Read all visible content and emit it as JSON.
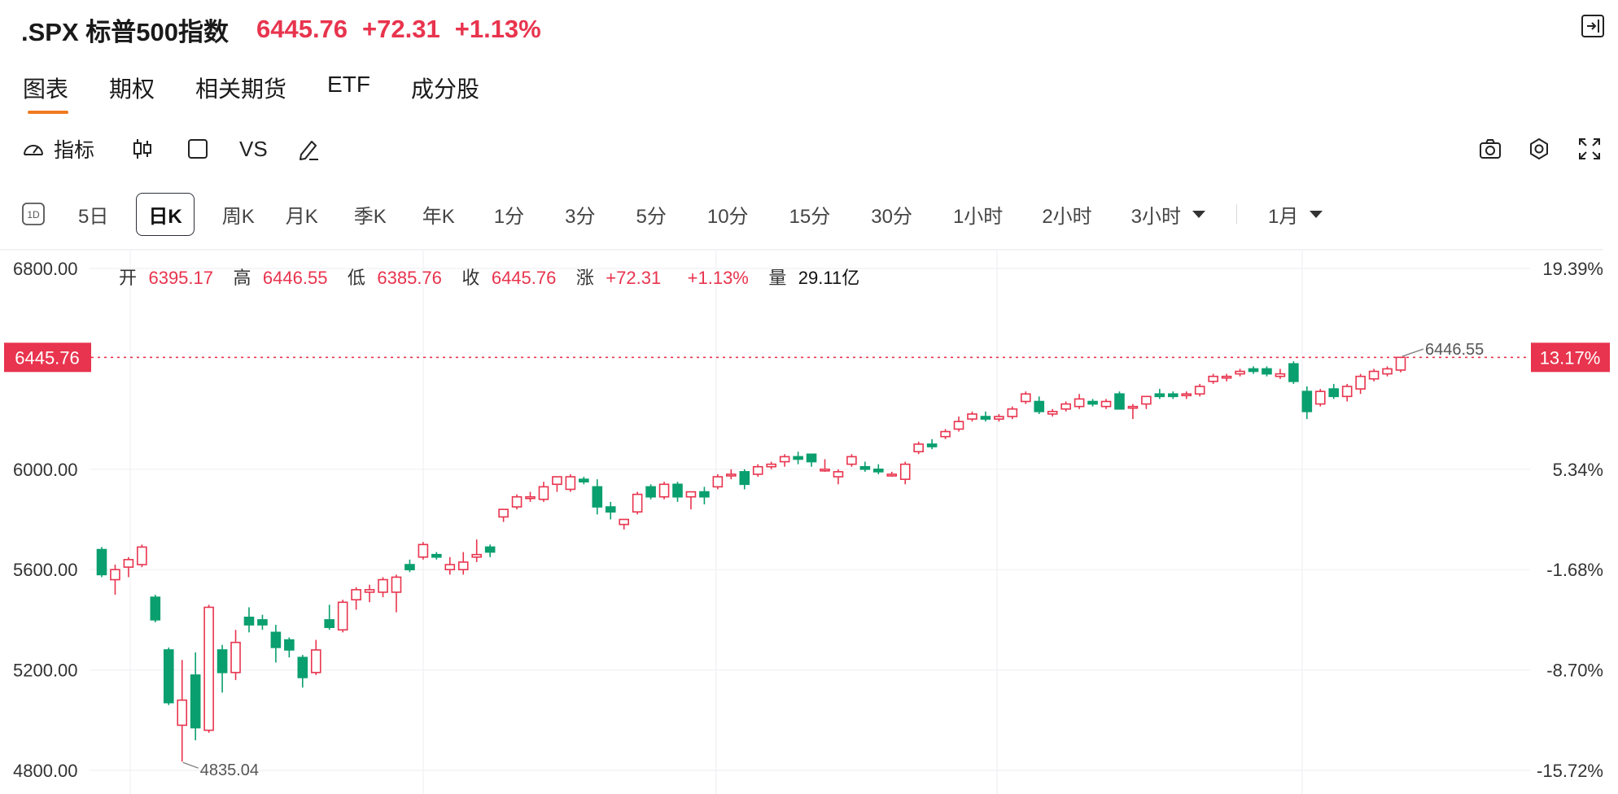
{
  "header": {
    "symbol": ".SPX 标普500指数",
    "price": "6445.76",
    "change": "+72.31",
    "change_pct": "+1.13%"
  },
  "icons": {
    "collapse": "collapse-panel-icon",
    "indicator": "gauge-icon",
    "candle": "candlestick-icon",
    "square": "square-icon",
    "draw": "pen-icon",
    "camera": "camera-icon",
    "settings": "gear-icon",
    "fullscreen": "fullscreen-icon",
    "day": "1d-badge-icon"
  },
  "tabs": [
    "图表",
    "期权",
    "相关期货",
    "ETF",
    "成分股"
  ],
  "toolbar": {
    "indicator_label": "指标",
    "vs_label": "VS"
  },
  "periods": {
    "items": [
      "5日",
      "日K",
      "周K",
      "月K",
      "季K",
      "年K",
      "1分",
      "3分",
      "5分",
      "10分",
      "15分",
      "30分",
      "1小时",
      "2小时"
    ],
    "active_index": 1,
    "more": "3小时",
    "range": "1月"
  },
  "colors": {
    "up": "#e8344e",
    "down": "#0a9f6e",
    "accent": "#f07a22"
  },
  "chart_data": {
    "type": "candlestick",
    "ylim": [
      4740,
      6840
    ],
    "y_ticks": [
      "6800.00",
      "6000.00",
      "5600.00",
      "5200.00",
      "4800.00"
    ],
    "y_tick_values": [
      6800,
      6000,
      5600,
      5200,
      4800
    ],
    "pct_ticks": [
      "19.39%",
      "13.17%",
      "5.34%",
      "-1.68%",
      "-8.70%",
      "-15.72%"
    ],
    "pct_tick_values": [
      6800,
      6445.76,
      6000,
      5600,
      5200,
      4800
    ],
    "current_price": "6445.76",
    "current_pct": "13.17%",
    "high_label": "6446.55",
    "low_label": "4835.04",
    "ohlc": {
      "open_label": "开",
      "open": "6395.17",
      "high_label": "高",
      "high": "6446.55",
      "low_label": "低",
      "low": "6385.76",
      "close_label": "收",
      "close": "6445.76",
      "change_label": "涨",
      "change": "+72.31",
      "change_pct": "+1.13%",
      "volume_label": "量",
      "volume": "29.11亿"
    },
    "candles": [
      [
        5680,
        5690,
        5570,
        5580
      ],
      [
        5560,
        5620,
        5500,
        5600
      ],
      [
        5610,
        5650,
        5570,
        5640
      ],
      [
        5620,
        5700,
        5610,
        5690
      ],
      [
        5490,
        5500,
        5390,
        5400
      ],
      [
        5280,
        5290,
        5060,
        5070
      ],
      [
        4980,
        5240,
        4835.04,
        5080
      ],
      [
        5180,
        5270,
        4920,
        4970
      ],
      [
        4960,
        5460,
        4950,
        5450
      ],
      [
        5280,
        5300,
        5110,
        5190
      ],
      [
        5190,
        5360,
        5160,
        5310
      ],
      [
        5410,
        5450,
        5350,
        5380
      ],
      [
        5400,
        5420,
        5360,
        5380
      ],
      [
        5350,
        5380,
        5230,
        5290
      ],
      [
        5320,
        5330,
        5250,
        5280
      ],
      [
        5250,
        5260,
        5130,
        5170
      ],
      [
        5190,
        5320,
        5180,
        5280
      ],
      [
        5400,
        5460,
        5360,
        5370
      ],
      [
        5360,
        5480,
        5350,
        5470
      ],
      [
        5480,
        5530,
        5440,
        5520
      ],
      [
        5510,
        5540,
        5470,
        5520
      ],
      [
        5510,
        5570,
        5490,
        5560
      ],
      [
        5510,
        5580,
        5430,
        5570
      ],
      [
        5620,
        5640,
        5590,
        5600
      ],
      [
        5650,
        5710,
        5640,
        5700
      ],
      [
        5660,
        5670,
        5640,
        5650
      ],
      [
        5600,
        5650,
        5580,
        5620
      ],
      [
        5600,
        5670,
        5580,
        5630
      ],
      [
        5650,
        5720,
        5630,
        5660
      ],
      [
        5690,
        5700,
        5650,
        5670
      ],
      [
        5810,
        5840,
        5790,
        5840
      ],
      [
        5850,
        5900,
        5840,
        5890
      ],
      [
        5890,
        5910,
        5870,
        5890
      ],
      [
        5880,
        5950,
        5870,
        5930
      ],
      [
        5940,
        5970,
        5910,
        5970
      ],
      [
        5920,
        5980,
        5910,
        5970
      ],
      [
        5960,
        5970,
        5940,
        5950
      ],
      [
        5930,
        5960,
        5820,
        5850
      ],
      [
        5850,
        5870,
        5800,
        5830
      ],
      [
        5780,
        5800,
        5760,
        5800
      ],
      [
        5830,
        5910,
        5820,
        5900
      ],
      [
        5930,
        5940,
        5880,
        5890
      ],
      [
        5890,
        5950,
        5880,
        5940
      ],
      [
        5940,
        5950,
        5870,
        5890
      ],
      [
        5890,
        5910,
        5840,
        5910
      ],
      [
        5910,
        5930,
        5860,
        5890
      ],
      [
        5930,
        5980,
        5920,
        5970
      ],
      [
        5980,
        6000,
        5960,
        5980
      ],
      [
        5990,
        6000,
        5920,
        5940
      ],
      [
        5980,
        6020,
        5970,
        6010
      ],
      [
        6010,
        6030,
        6000,
        6020
      ],
      [
        6030,
        6060,
        6010,
        6050
      ],
      [
        6050,
        6070,
        6020,
        6040
      ],
      [
        6060,
        6060,
        6010,
        6030
      ],
      [
        6000,
        6040,
        5990,
        6000
      ],
      [
        5970,
        6000,
        5940,
        5990
      ],
      [
        6020,
        6060,
        6010,
        6050
      ],
      [
        6010,
        6030,
        5990,
        6000
      ],
      [
        6000,
        6020,
        5980,
        5990
      ],
      [
        5980,
        5990,
        5970,
        5980
      ],
      [
        5960,
        6030,
        5940,
        6020
      ],
      [
        6070,
        6110,
        6060,
        6100
      ],
      [
        6100,
        6120,
        6080,
        6090
      ],
      [
        6130,
        6160,
        6120,
        6150
      ],
      [
        6160,
        6210,
        6150,
        6190
      ],
      [
        6200,
        6230,
        6190,
        6220
      ],
      [
        6210,
        6230,
        6190,
        6200
      ],
      [
        6200,
        6220,
        6190,
        6210
      ],
      [
        6210,
        6250,
        6200,
        6240
      ],
      [
        6270,
        6310,
        6260,
        6300
      ],
      [
        6270,
        6290,
        6220,
        6230
      ],
      [
        6220,
        6240,
        6210,
        6230
      ],
      [
        6240,
        6270,
        6230,
        6260
      ],
      [
        6250,
        6300,
        6240,
        6280
      ],
      [
        6270,
        6280,
        6250,
        6260
      ],
      [
        6250,
        6280,
        6240,
        6270
      ],
      [
        6300,
        6310,
        6240,
        6240
      ],
      [
        6250,
        6260,
        6200,
        6250
      ],
      [
        6260,
        6290,
        6240,
        6290
      ],
      [
        6300,
        6320,
        6280,
        6290
      ],
      [
        6300,
        6310,
        6280,
        6290
      ],
      [
        6300,
        6310,
        6280,
        6300
      ],
      [
        6300,
        6340,
        6290,
        6330
      ],
      [
        6350,
        6380,
        6340,
        6370
      ],
      [
        6370,
        6380,
        6350,
        6370
      ],
      [
        6380,
        6400,
        6370,
        6390
      ],
      [
        6400,
        6410,
        6380,
        6390
      ],
      [
        6400,
        6410,
        6370,
        6380
      ],
      [
        6370,
        6400,
        6360,
        6380
      ],
      [
        6420,
        6430,
        6340,
        6350
      ],
      [
        6310,
        6330,
        6200,
        6230
      ],
      [
        6260,
        6320,
        6250,
        6310
      ],
      [
        6320,
        6340,
        6280,
        6290
      ],
      [
        6290,
        6340,
        6270,
        6330
      ],
      [
        6320,
        6380,
        6300,
        6370
      ],
      [
        6360,
        6400,
        6350,
        6390
      ],
      [
        6380,
        6410,
        6370,
        6400
      ],
      [
        6395.17,
        6446.55,
        6385.76,
        6445.76
      ]
    ]
  }
}
